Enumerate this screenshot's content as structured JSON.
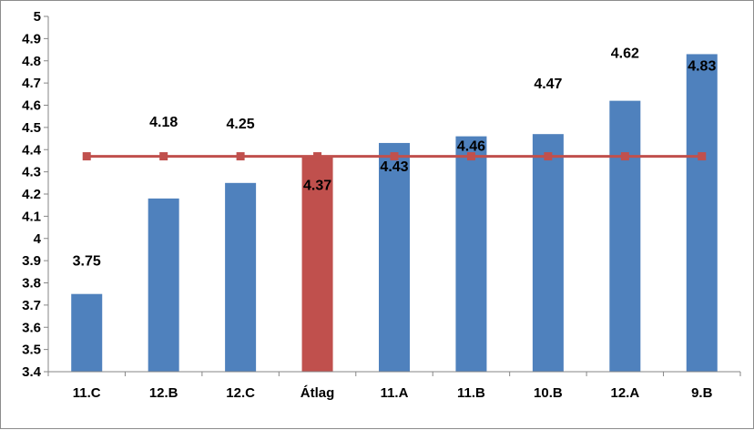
{
  "chart_data": {
    "type": "bar",
    "categories": [
      "11.C",
      "12.B",
      "12.C",
      "Átlag",
      "11.A",
      "11.B",
      "10.B",
      "12.A",
      "9.B"
    ],
    "values": [
      3.75,
      4.18,
      4.25,
      4.37,
      4.43,
      4.46,
      4.47,
      4.62,
      4.83
    ],
    "value_labels": [
      "3.75",
      "4.18",
      "4.25",
      "4.37",
      "4.43",
      "4.46",
      "4.47",
      "4.62",
      "4.83"
    ],
    "highlight_index": 3,
    "reference_line": {
      "value": 4.37
    },
    "ylim": [
      3.4,
      5
    ],
    "yticks": [
      "3.4",
      "3.5",
      "3.6",
      "3.7",
      "3.8",
      "3.9",
      "4",
      "4.1",
      "4.2",
      "4.3",
      "4.4",
      "4.5",
      "4.6",
      "4.7",
      "4.8",
      "4.9",
      "5"
    ],
    "grid": false,
    "legend": "none",
    "title": "",
    "xlabel": "",
    "ylabel": "",
    "colors": {
      "bar": "#4f81bd",
      "highlight_bar": "#c0504d",
      "line": "#c0504d",
      "marker": "#c0504d"
    }
  }
}
